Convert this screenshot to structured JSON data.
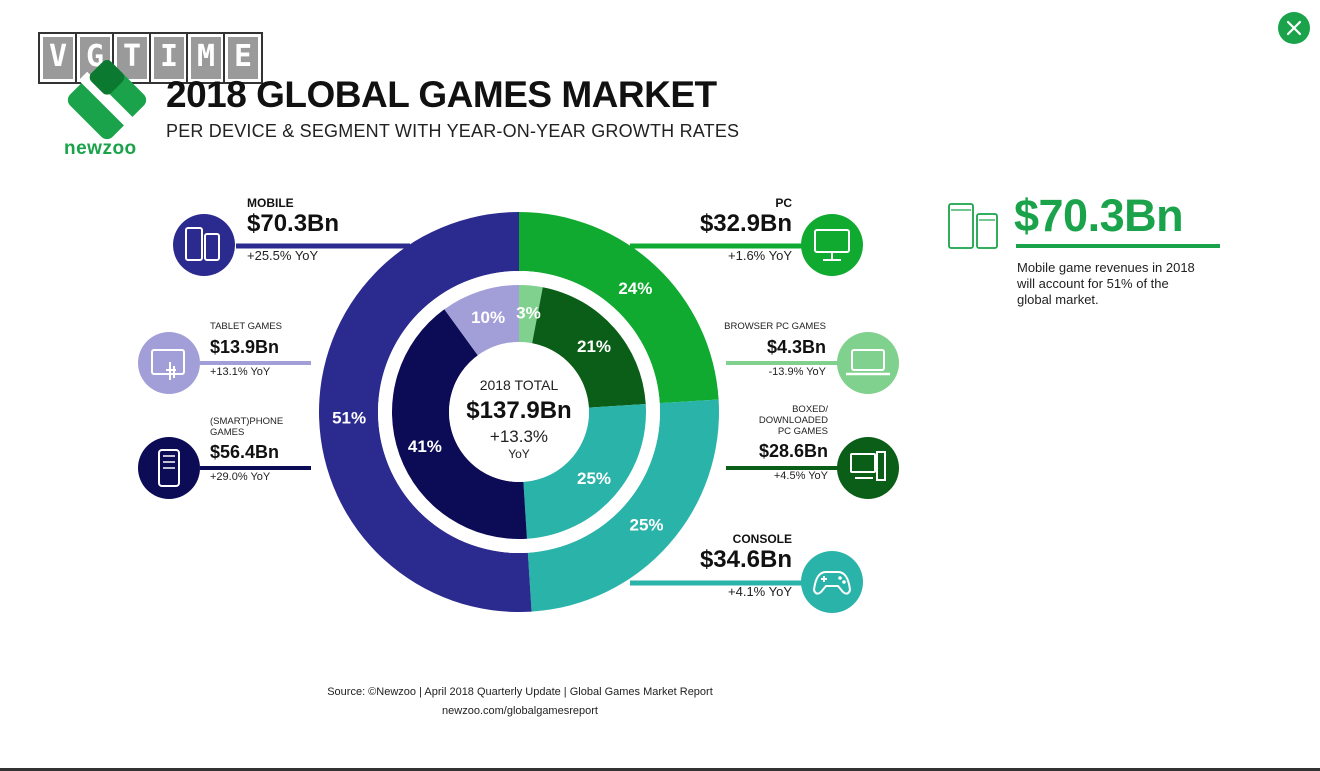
{
  "watermark": "VGTIME",
  "brand": {
    "name": "newzoo",
    "green": "#1aa34a"
  },
  "header": {
    "title": "2018 GLOBAL GAMES MARKET",
    "subtitle": "PER DEVICE & SEGMENT WITH YEAR-ON-YEAR GROWTH RATES"
  },
  "total": {
    "label": "2018 TOTAL",
    "value": "$137.9Bn",
    "growth": "+13.3%",
    "growth_unit": "YoY"
  },
  "segments": {
    "mobile": {
      "name": "MOBILE",
      "value": "$70.3Bn",
      "yoy": "+25.5% YoY",
      "icon": "mobile-devices-icon"
    },
    "pc": {
      "name": "PC",
      "value": "$32.9Bn",
      "yoy": "+1.6% YoY",
      "icon": "monitor-icon"
    },
    "console": {
      "name": "CONSOLE",
      "value": "$34.6Bn",
      "yoy": "+4.1% YoY",
      "icon": "gamepad-icon"
    },
    "tablet": {
      "name": "TABLET GAMES",
      "value": "$13.9Bn",
      "yoy": "+13.1% YoY",
      "icon": "tablet-touch-icon"
    },
    "smartphone": {
      "name_line1": "(SMART)PHONE",
      "name_line2": "GAMES",
      "value": "$56.4Bn",
      "yoy": "+29.0% YoY",
      "icon": "smartphone-icon"
    },
    "browser_pc": {
      "name": "BROWSER PC GAMES",
      "value": "$4.3Bn",
      "yoy": "-13.9% YoY",
      "icon": "laptop-icon"
    },
    "boxed_pc": {
      "name_line1": "BOXED/",
      "name_line2": "DOWNLOADED",
      "name_line3": "PC GAMES",
      "value": "$28.6Bn",
      "yoy": "+4.5% YoY",
      "icon": "desktop-tower-icon"
    }
  },
  "highlight": {
    "value": "$70.3Bn",
    "text": "Mobile game revenues in 2018 will account for 51% of the global market.",
    "icon": "mobile-devices-outline-icon"
  },
  "footer": {
    "source": "Source: ©Newzoo | April 2018 Quarterly Update | Global Games Market Report",
    "url": "newzoo.com/globalgamesreport"
  },
  "chart_data": {
    "type": "pie",
    "title": "2018 GLOBAL GAMES MARKET",
    "outer_ring": {
      "categories": [
        "PC",
        "CONSOLE",
        "MOBILE"
      ],
      "values": [
        24,
        25,
        51
      ],
      "labels": [
        "24%",
        "25%",
        "51%"
      ],
      "revenue": [
        "$32.9Bn",
        "$34.6Bn",
        "$70.3Bn"
      ],
      "colors": [
        "#0faa2f",
        "#2ab3a9",
        "#2b2a8f"
      ]
    },
    "inner_ring": {
      "categories": [
        "BROWSER PC GAMES",
        "BOXED/DOWNLOADED PC GAMES",
        "CONSOLE",
        "(SMART)PHONE GAMES",
        "TABLET GAMES"
      ],
      "values": [
        3,
        21,
        25,
        41,
        10
      ],
      "labels": [
        "3%",
        "21%",
        "25%",
        "41%",
        "10%"
      ],
      "revenue": [
        "$4.3Bn",
        "$28.6Bn",
        "$34.6Bn",
        "$56.4Bn",
        "$13.9Bn"
      ],
      "colors": [
        "#7fd18d",
        "#0b5e18",
        "#2ab3a9",
        "#0c0b56",
        "#a29ed8"
      ]
    }
  }
}
